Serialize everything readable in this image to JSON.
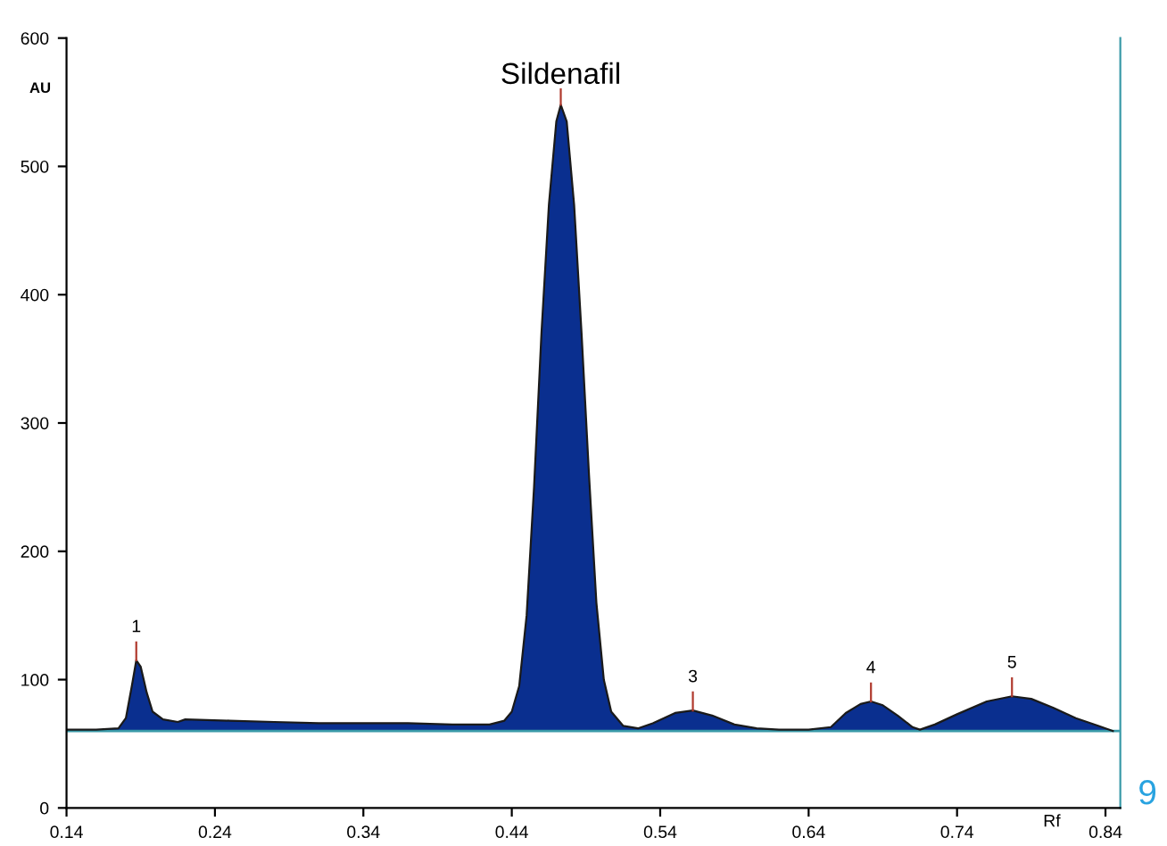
{
  "chart_data": {
    "type": "area",
    "xlabel": "Rf",
    "ylabel": "AU",
    "annotations": [
      {
        "text": "Sildenafil",
        "x": 0.473,
        "y": 548
      },
      {
        "text": "1",
        "x": 0.187,
        "y": 115
      },
      {
        "text": "3",
        "x": 0.562,
        "y": 76
      },
      {
        "text": "4",
        "x": 0.682,
        "y": 83
      },
      {
        "text": "5",
        "x": 0.777,
        "y": 87
      },
      "9"
    ],
    "x": [
      0.14,
      0.16,
      0.175,
      0.18,
      0.184,
      0.187,
      0.19,
      0.194,
      0.198,
      0.205,
      0.215,
      0.22,
      0.25,
      0.28,
      0.31,
      0.34,
      0.37,
      0.4,
      0.425,
      0.435,
      0.44,
      0.445,
      0.45,
      0.455,
      0.46,
      0.465,
      0.47,
      0.473,
      0.477,
      0.482,
      0.487,
      0.492,
      0.497,
      0.502,
      0.507,
      0.515,
      0.525,
      0.535,
      0.55,
      0.562,
      0.575,
      0.59,
      0.605,
      0.62,
      0.64,
      0.655,
      0.665,
      0.675,
      0.682,
      0.69,
      0.7,
      0.71,
      0.715,
      0.725,
      0.74,
      0.76,
      0.777,
      0.79,
      0.805,
      0.82,
      0.835,
      0.845
    ],
    "series": [
      {
        "color": "#0a2f8f",
        "values": [
          61,
          61,
          62,
          70,
          95,
          115,
          110,
          90,
          75,
          69,
          67,
          69,
          68,
          67,
          66,
          66,
          66,
          65,
          65,
          68,
          75,
          95,
          150,
          250,
          370,
          470,
          535,
          548,
          535,
          470,
          370,
          260,
          160,
          100,
          75,
          64,
          62,
          66,
          74,
          76,
          72,
          65,
          62,
          61,
          61,
          63,
          74,
          81,
          83,
          80,
          72,
          63,
          61,
          65,
          73,
          83,
          87,
          85,
          78,
          70,
          64,
          60
        ]
      }
    ],
    "ref_lines": [
      {
        "axis": "y",
        "value": 60,
        "color": "#3a9aa8"
      }
    ],
    "xlim": [
      0.14,
      0.85
    ],
    "ylim": [
      0,
      600
    ],
    "xticks": [
      0.14,
      0.24,
      0.34,
      0.44,
      0.54,
      0.64,
      0.74,
      0.84
    ],
    "yticks": [
      0,
      100,
      200,
      300,
      400,
      500,
      600
    ],
    "grid": false
  }
}
